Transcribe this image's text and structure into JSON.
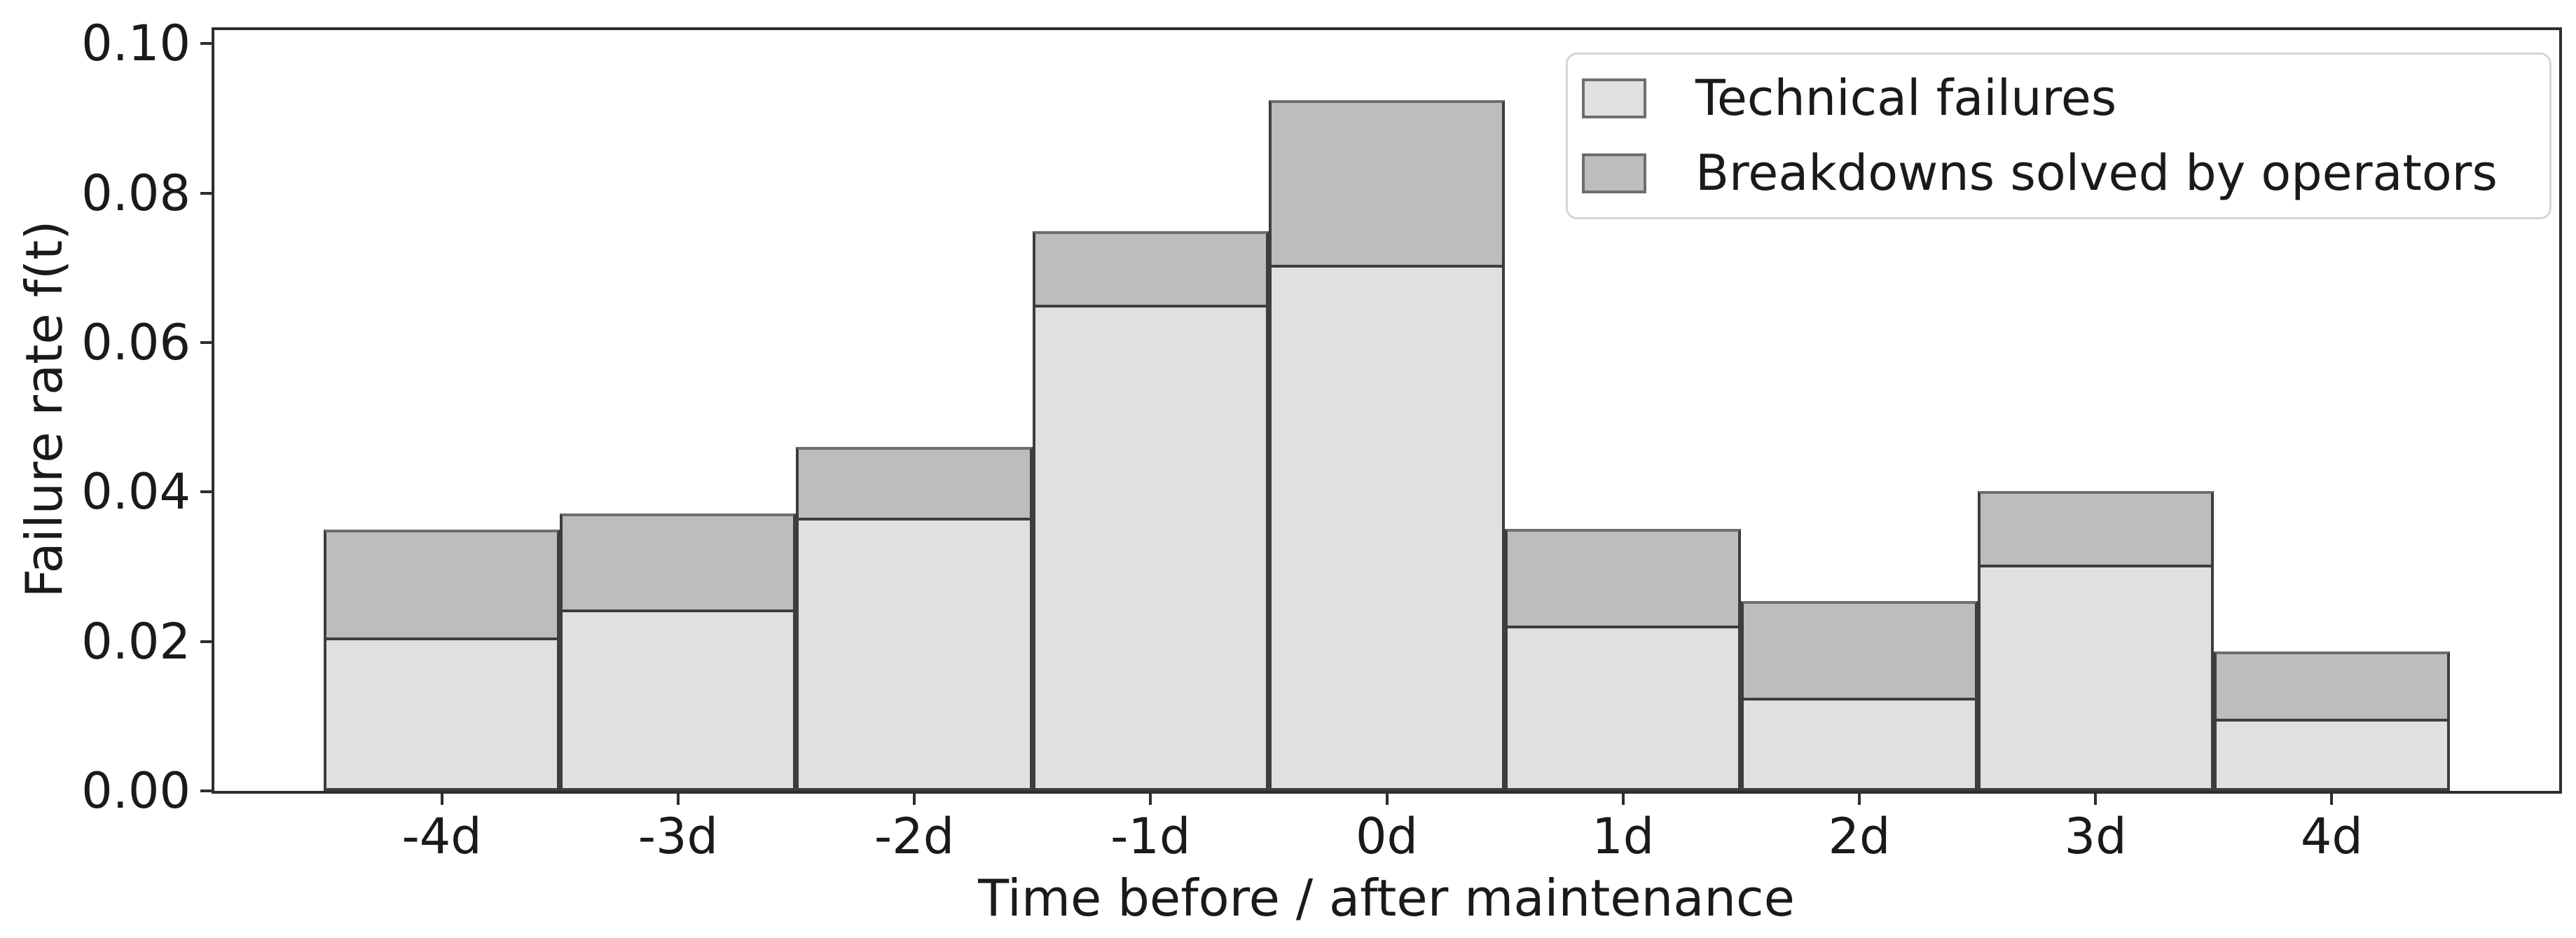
{
  "chart_data": {
    "type": "bar",
    "stacked": true,
    "xlabel": "Time before / after maintenance",
    "ylabel": "Failure rate f(t)",
    "categories": [
      "-4d",
      "-3d",
      "-2d",
      "-1d",
      "0d",
      "1d",
      "2d",
      "3d",
      "4d"
    ],
    "series": [
      {
        "name": "Technical failures",
        "color": "#e0e0e0",
        "edge_color": "#3d3d3d",
        "values": [
          0.0205,
          0.0243,
          0.0366,
          0.0651,
          0.0704,
          0.0221,
          0.0125,
          0.0303,
          0.0097
        ]
      },
      {
        "name": "Breakdowns solved by operators",
        "color": "#bdbdbd",
        "edge_color": "#3d3d3d",
        "top_edge_color": "#6e6e6e",
        "values": [
          0.0145,
          0.0128,
          0.0094,
          0.0098,
          0.022,
          0.013,
          0.0129,
          0.0098,
          0.009
        ]
      }
    ],
    "totals": [
      0.035,
      0.0371,
      0.046,
      0.0749,
      0.0924,
      0.0351,
      0.0254,
      0.0401,
      0.0187
    ],
    "ylim": [
      0,
      0.1018
    ],
    "yticks": [
      {
        "value": 0.0,
        "label": "0.00"
      },
      {
        "value": 0.02,
        "label": "0.02"
      },
      {
        "value": 0.04,
        "label": "0.04"
      },
      {
        "value": 0.06,
        "label": "0.06"
      },
      {
        "value": 0.08,
        "label": "0.08"
      },
      {
        "value": 0.1,
        "label": "0.10"
      }
    ],
    "grid": false,
    "legend_position": "upper right",
    "spine_color": "#2e2e2e",
    "background_color": "#ffffff",
    "text_color": "#1a1a1a"
  }
}
